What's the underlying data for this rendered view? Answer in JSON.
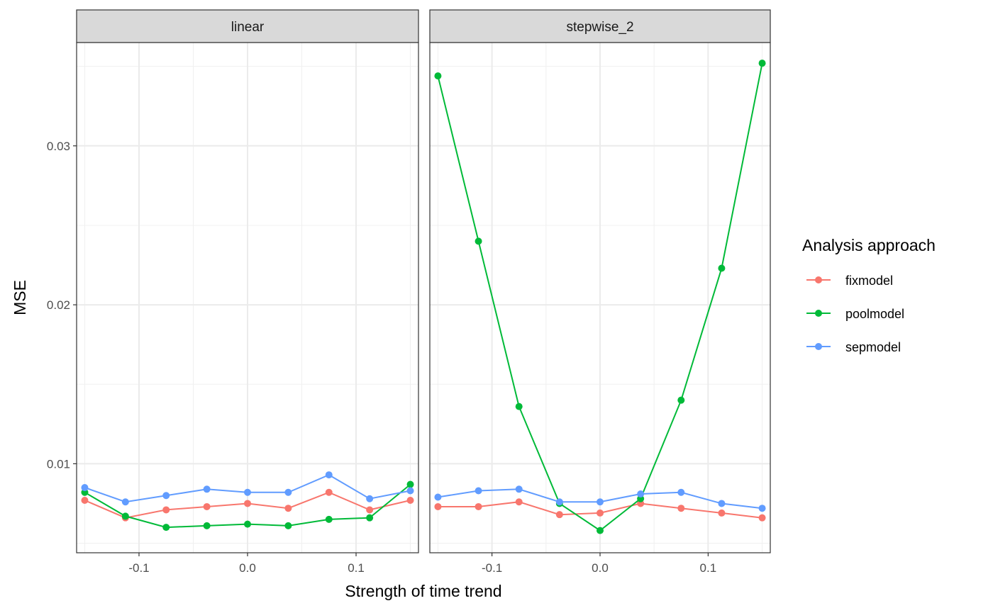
{
  "chart_data": {
    "type": "line",
    "xlabel": "Strength of time trend",
    "ylabel": "MSE",
    "x": [
      -0.15,
      -0.1125,
      -0.075,
      -0.0375,
      0.0,
      0.0375,
      0.075,
      0.1125,
      0.15
    ],
    "xlim": [
      -0.1575,
      0.1575
    ],
    "ylim": [
      0.0044,
      0.0365
    ],
    "x_ticks": [
      -0.1,
      0.0,
      0.1
    ],
    "x_tick_labels": [
      "-0.1",
      "0.0",
      "0.1"
    ],
    "y_ticks": [
      0.01,
      0.02,
      0.03
    ],
    "y_tick_labels": [
      "0.01",
      "0.02",
      "0.03"
    ],
    "grid": true,
    "legend": {
      "title": "Analysis approach",
      "position": "right"
    },
    "series": [
      {
        "name": "fixmodel",
        "color": "#F8766D"
      },
      {
        "name": "poolmodel",
        "color": "#00BA38"
      },
      {
        "name": "sepmodel",
        "color": "#619CFF"
      }
    ],
    "panels": [
      {
        "label": "linear",
        "values": {
          "fixmodel": [
            0.0077,
            0.0066,
            0.0071,
            0.0073,
            0.0075,
            0.0072,
            0.0082,
            0.0071,
            0.0077
          ],
          "poolmodel": [
            0.0082,
            0.0067,
            0.006,
            0.0061,
            0.0062,
            0.0061,
            0.0065,
            0.0066,
            0.0087
          ],
          "sepmodel": [
            0.0085,
            0.0076,
            0.008,
            0.0084,
            0.0082,
            0.0082,
            0.0093,
            0.0078,
            0.0083
          ]
        }
      },
      {
        "label": "stepwise_2",
        "values": {
          "fixmodel": [
            0.0073,
            0.0073,
            0.0076,
            0.0068,
            0.0069,
            0.0075,
            0.0072,
            0.0069,
            0.0066
          ],
          "poolmodel": [
            0.0344,
            0.024,
            0.0136,
            0.0075,
            0.0058,
            0.0078,
            0.014,
            0.0223,
            0.0352
          ],
          "sepmodel": [
            0.0079,
            0.0083,
            0.0084,
            0.0076,
            0.0076,
            0.0081,
            0.0082,
            0.0075,
            0.0072
          ]
        }
      }
    ]
  }
}
